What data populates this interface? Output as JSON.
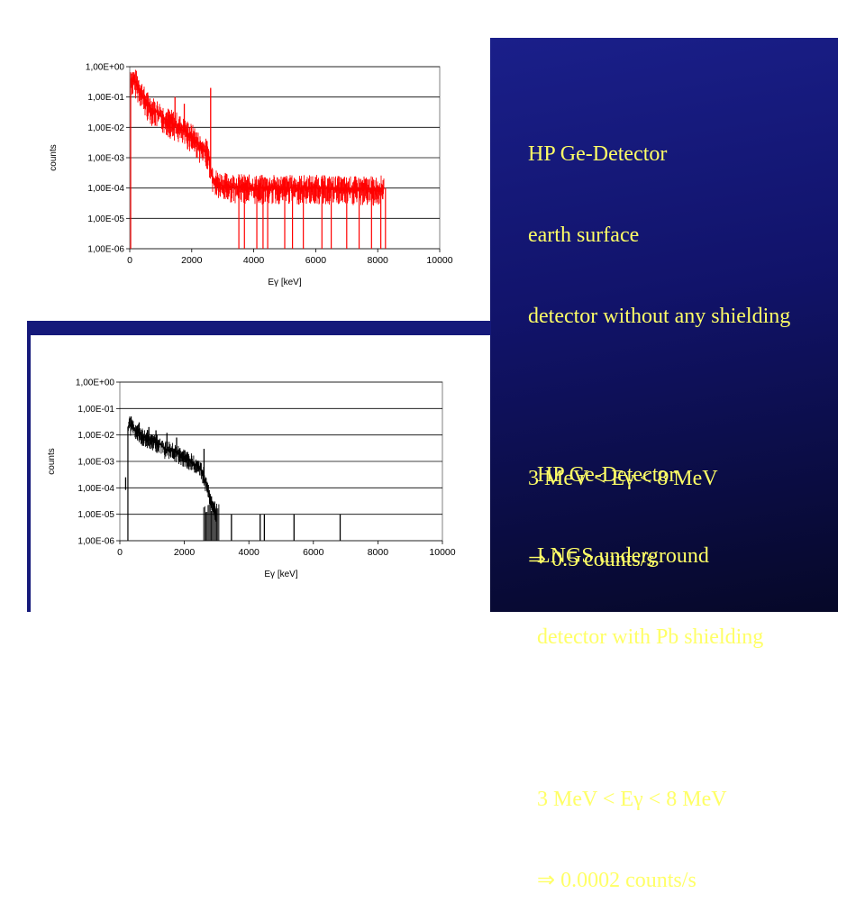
{
  "panel": {
    "top_text": {
      "lines": [
        "HP Ge-Detector",
        "earth surface",
        "detector without any shielding",
        "",
        "3 MeV < Eγ < 8 MeV",
        "⇒ 0.5 counts/s"
      ]
    },
    "bottom_text": {
      "lines": [
        "HP Ge-Detector",
        "LNGS underground",
        "detector with Pb shielding",
        "",
        "3 MeV < Eγ < 8 MeV",
        "⇒ 0.0002 counts/s"
      ]
    },
    "colors": {
      "text": "#ffff66",
      "background": "#11136a"
    }
  },
  "chart_data": [
    {
      "type": "line",
      "title": "",
      "xlabel": "Eγ [keV]",
      "ylabel": "counts",
      "xlim": [
        0,
        10000
      ],
      "ylim": [
        1e-06,
        1
      ],
      "yscale": "log",
      "xticks": [
        "0",
        "2000",
        "4000",
        "6000",
        "8000",
        "10000"
      ],
      "yticks": [
        "1,00E-06",
        "1,00E-05",
        "1,00E-04",
        "1,00E-03",
        "1,00E-02",
        "1,00E-01",
        "1,00E+00"
      ],
      "grid": "horizontal",
      "color": "#ff0000",
      "series": [
        {
          "x": [
            30,
            100,
            200,
            300,
            400,
            500,
            700,
            900,
            1100,
            1300,
            1500,
            1700,
            1900,
            2100,
            2300,
            2500,
            2550,
            2620,
            2700,
            2800,
            3000,
            3500,
            4000,
            5000,
            6000,
            7000,
            7500,
            8000,
            8200
          ],
          "y": [
            0.4,
            0.35,
            0.3,
            0.2,
            0.12,
            0.07,
            0.04,
            0.03,
            0.02,
            0.015,
            0.012,
            0.008,
            0.006,
            0.004,
            0.002,
            0.0015,
            0.001,
            0.0004,
            0.0002,
            0.00015,
            0.00012,
            0.00011,
            0.0001,
            0.0001,
            0.0001,
            9e-05,
            9e-05,
            9e-05,
            0.0001
          ]
        }
      ],
      "peaks": [
        {
          "x": 150,
          "y": 0.5
        },
        {
          "x": 1460,
          "y": 0.1
        },
        {
          "x": 1760,
          "y": 0.06
        },
        {
          "x": 2610,
          "y": 0.2
        }
      ],
      "dropouts_x": [
        3520,
        3700,
        4100,
        4300,
        4450,
        5000,
        5250,
        5600,
        6200,
        6500,
        7000,
        7400,
        7800,
        8100,
        8250
      ]
    },
    {
      "type": "line",
      "title": "",
      "xlabel": "Eγ [keV]",
      "ylabel": "counts",
      "xlim": [
        0,
        10000
      ],
      "ylim": [
        1e-06,
        1
      ],
      "yscale": "log",
      "xticks": [
        "0",
        "2000",
        "4000",
        "6000",
        "8000",
        "10000"
      ],
      "yticks": [
        "1,00E-06",
        "1,00E-05",
        "1,00E-04",
        "1,00E-03",
        "1,00E-02",
        "1,00E-01",
        "1,00E+00"
      ],
      "grid": "horizontal",
      "color": "#000000",
      "series": [
        {
          "x": [
            250,
            300,
            400,
            500,
            600,
            800,
            1000,
            1200,
            1400,
            1600,
            1800,
            2000,
            2200,
            2400,
            2500,
            2600,
            2700,
            2800,
            2900,
            3000
          ],
          "y": [
            0.02,
            0.025,
            0.02,
            0.015,
            0.012,
            0.008,
            0.006,
            0.005,
            0.003,
            0.0025,
            0.002,
            0.0015,
            0.001,
            0.0007,
            0.0005,
            0.0003,
            0.0001,
            5e-05,
            2e-05,
            1e-05
          ]
        }
      ],
      "peaks": [
        {
          "x": 180,
          "y": 0.00025
        },
        {
          "x": 350,
          "y": 0.05
        },
        {
          "x": 600,
          "y": 0.03
        },
        {
          "x": 900,
          "y": 0.02
        },
        {
          "x": 1120,
          "y": 0.015
        },
        {
          "x": 1460,
          "y": 0.012
        },
        {
          "x": 1760,
          "y": 0.008
        },
        {
          "x": 2610,
          "y": 0.003
        }
      ],
      "lines_tail": [
        {
          "x": 3460,
          "y": 1e-05
        },
        {
          "x": 4350,
          "y": 1e-05
        },
        {
          "x": 4480,
          "y": 1e-05
        },
        {
          "x": 5400,
          "y": 1e-05
        },
        {
          "x": 6830,
          "y": 1e-05
        }
      ],
      "zero_floor_x": [
        2600,
        3100
      ]
    }
  ]
}
